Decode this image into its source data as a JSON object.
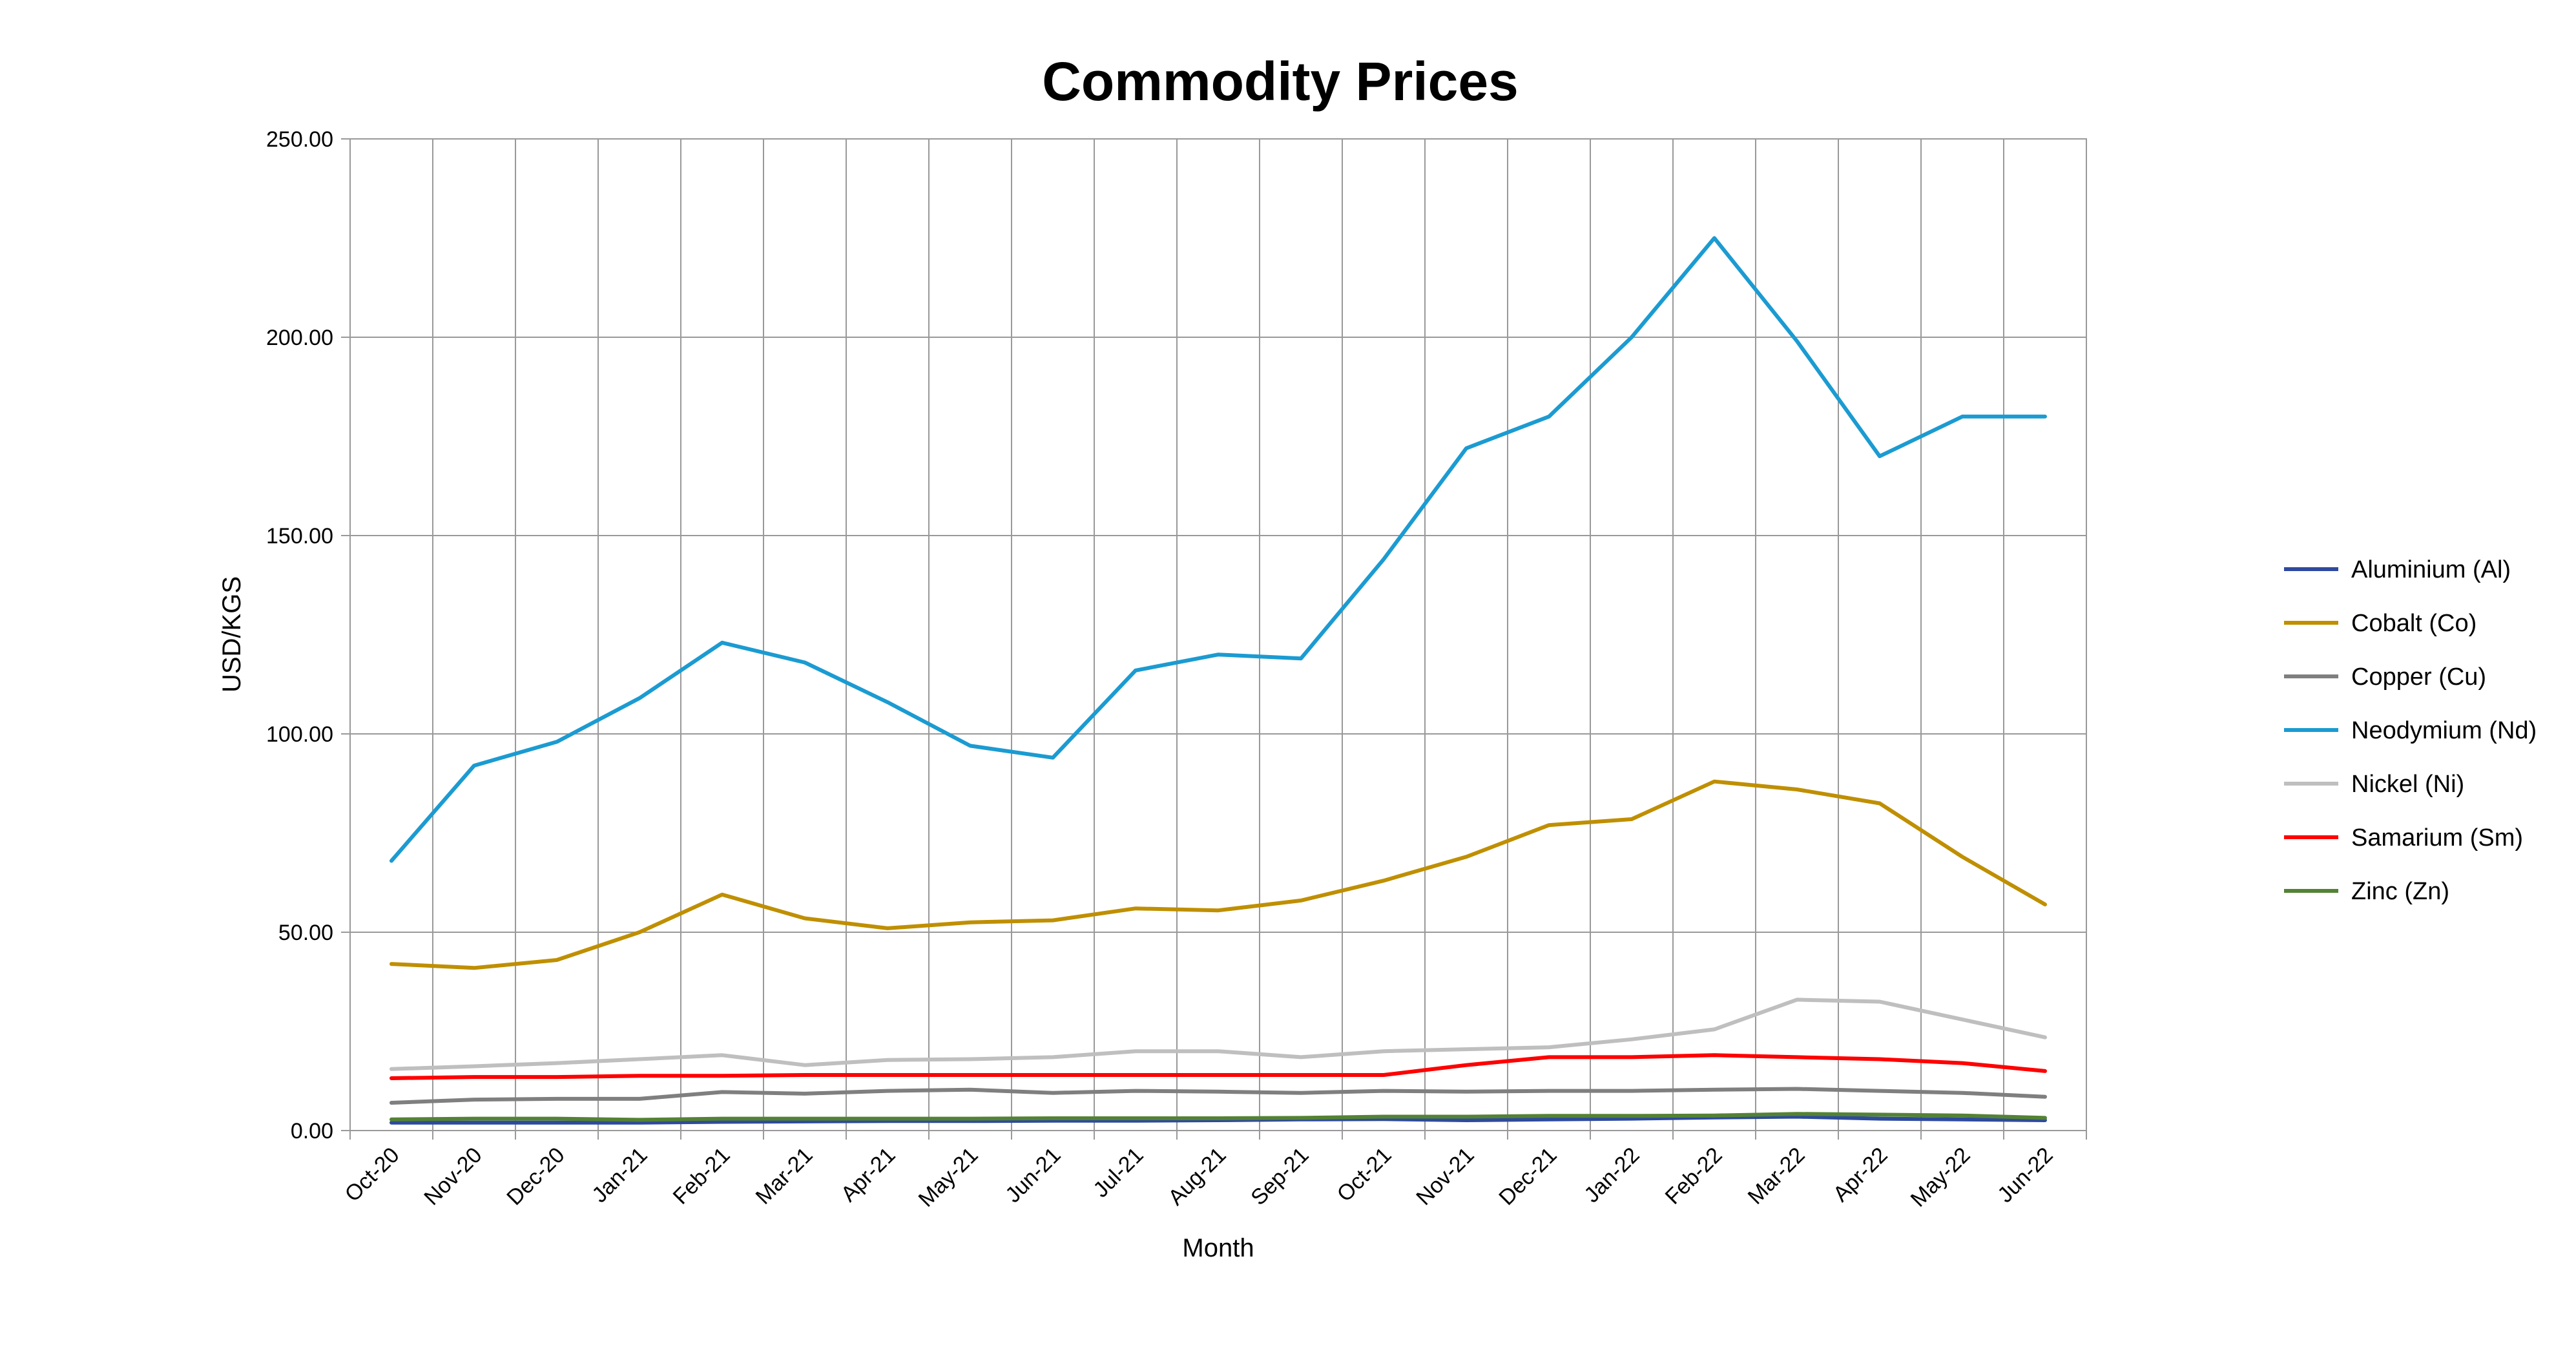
{
  "chart_data": {
    "type": "line",
    "title": "Commodity Prices",
    "xlabel": "Month",
    "ylabel": "USD/KGS",
    "ylim": [
      0,
      250
    ],
    "yticks": [
      "0.00",
      "50.00",
      "100.00",
      "150.00",
      "200.00",
      "250.00"
    ],
    "grid": true,
    "legend_position": "right",
    "categories": [
      "Oct-20",
      "Nov-20",
      "Dec-20",
      "Jan-21",
      "Feb-21",
      "Mar-21",
      "Apr-21",
      "May-21",
      "Jun-21",
      "Jul-21",
      "Aug-21",
      "Sep-21",
      "Oct-21",
      "Nov-21",
      "Dec-21",
      "Jan-22",
      "Feb-22",
      "Mar-22",
      "Apr-22",
      "May-22",
      "Jun-22"
    ],
    "series": [
      {
        "name": "Aluminium (Al)",
        "color": "#2E4A9E",
        "values": [
          2.0,
          2.0,
          2.0,
          2.0,
          2.2,
          2.3,
          2.4,
          2.4,
          2.5,
          2.5,
          2.6,
          2.8,
          2.9,
          2.6,
          2.8,
          3.0,
          3.3,
          3.5,
          3.0,
          2.8,
          2.6
        ]
      },
      {
        "name": "Cobalt (Co)",
        "color": "#BF8F00",
        "values": [
          42,
          41,
          43,
          50,
          59.5,
          53.5,
          51,
          52.5,
          53,
          56,
          55.5,
          58,
          63,
          69,
          77,
          78.5,
          88,
          86,
          82.5,
          69,
          57
        ]
      },
      {
        "name": "Copper (Cu)",
        "color": "#7F7F7F",
        "values": [
          7,
          7.8,
          8,
          8,
          9.7,
          9.3,
          10,
          10.3,
          9.5,
          10,
          9.8,
          9.5,
          10,
          9.8,
          10,
          10,
          10.3,
          10.5,
          10,
          9.5,
          8.5
        ]
      },
      {
        "name": "Neodymium (Nd)",
        "color": "#1B9BD1",
        "values": [
          68,
          92,
          98,
          109,
          123,
          118,
          108,
          97,
          94,
          116,
          120,
          119,
          144,
          172,
          180,
          200,
          225,
          199,
          170,
          180,
          180
        ]
      },
      {
        "name": "Nickel (Ni)",
        "color": "#BFBFBF",
        "values": [
          15.5,
          16.2,
          17,
          18,
          19,
          16.5,
          17.8,
          18,
          18.5,
          20,
          20,
          18.5,
          20,
          20.5,
          21,
          23,
          25.5,
          33,
          32.5,
          28,
          23.5
        ]
      },
      {
        "name": "Samarium (Sm)",
        "color": "#FF0000",
        "values": [
          13.2,
          13.5,
          13.5,
          13.8,
          13.8,
          14,
          14,
          14,
          14,
          14,
          14,
          14,
          14,
          16.5,
          18.5,
          18.5,
          19,
          18.5,
          18,
          17,
          15
        ]
      },
      {
        "name": "Zinc (Zn)",
        "color": "#548235",
        "values": [
          2.8,
          3.0,
          3.0,
          2.7,
          3.0,
          3.0,
          3.0,
          3.0,
          3.1,
          3.1,
          3.1,
          3.2,
          3.5,
          3.5,
          3.7,
          3.7,
          3.8,
          4.2,
          4.0,
          3.8,
          3.2
        ]
      }
    ]
  }
}
